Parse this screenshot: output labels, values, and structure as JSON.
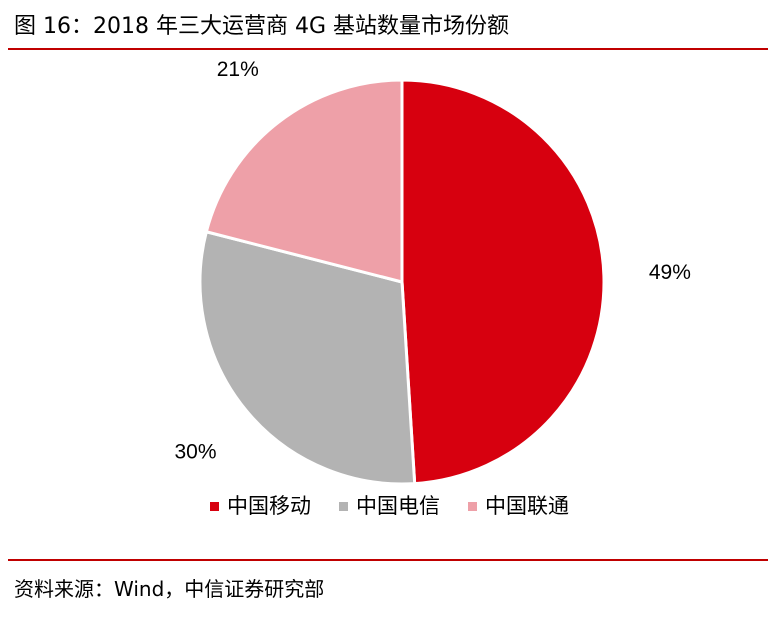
{
  "title": "图 16：2018 年三大运营商 4G 基站数量市场份额",
  "source": "资料来源：Wind，中信证券研究部",
  "chart_data": {
    "type": "pie",
    "title": "",
    "start_angle": "12 o'clock",
    "direction": "clockwise",
    "slices": [
      {
        "name": "中国移动",
        "value": 49,
        "label": "49%",
        "color": "#d7000f"
      },
      {
        "name": "中国电信",
        "value": 30,
        "label": "30%",
        "color": "#b3b3b3"
      },
      {
        "name": "中国联通",
        "value": 21,
        "label": "21%",
        "color": "#eea0a8"
      }
    ],
    "legend": {
      "position": "bottom"
    }
  }
}
